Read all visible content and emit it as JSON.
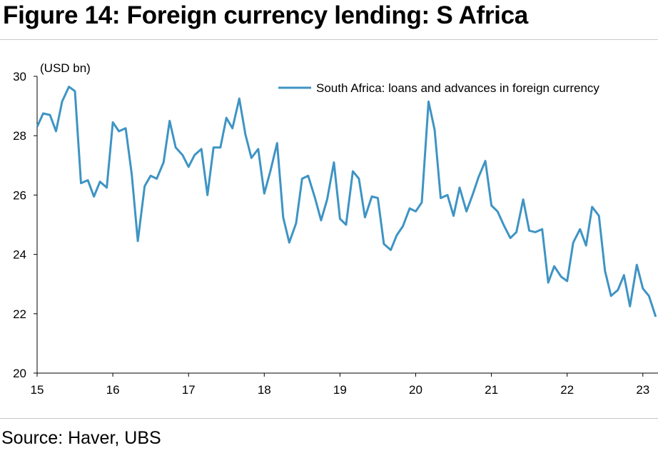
{
  "figure": {
    "title": "Figure 14: Foreign currency lending: S Africa",
    "source": "Source: Haver, UBS"
  },
  "colors": {
    "line": "#3e94c4",
    "axis": "#000000",
    "rule": "#c8c8c8"
  },
  "chart_data": {
    "type": "line",
    "unit_label": "(USD bn)",
    "ylim": [
      20,
      30
    ],
    "yticks": [
      20,
      22,
      24,
      26,
      28,
      30
    ],
    "xlim": [
      15,
      23.2
    ],
    "xticks": [
      15,
      16,
      17,
      18,
      19,
      20,
      21,
      22,
      23
    ],
    "xtick_labels": [
      "15",
      "16",
      "17",
      "18",
      "19",
      "20",
      "21",
      "22",
      "23"
    ],
    "grid": false,
    "legend_position": "top-right",
    "series": [
      {
        "name": "South Africa: loans and advances in foreign currency",
        "x": [
          15.0,
          15.08,
          15.17,
          15.25,
          15.33,
          15.42,
          15.5,
          15.58,
          15.67,
          15.75,
          15.83,
          15.92,
          16.0,
          16.08,
          16.17,
          16.25,
          16.33,
          16.42,
          16.5,
          16.58,
          16.67,
          16.75,
          16.83,
          16.92,
          17.0,
          17.08,
          17.17,
          17.25,
          17.33,
          17.42,
          17.5,
          17.58,
          17.67,
          17.75,
          17.83,
          17.92,
          18.0,
          18.08,
          18.17,
          18.25,
          18.33,
          18.42,
          18.5,
          18.58,
          18.67,
          18.75,
          18.83,
          18.92,
          19.0,
          19.08,
          19.17,
          19.25,
          19.33,
          19.42,
          19.5,
          19.58,
          19.67,
          19.75,
          19.83,
          19.92,
          20.0,
          20.08,
          20.17,
          20.25,
          20.33,
          20.42,
          20.5,
          20.58,
          20.67,
          20.75,
          20.83,
          20.92,
          21.0,
          21.08,
          21.17,
          21.25,
          21.33,
          21.42,
          21.5,
          21.58,
          21.67,
          21.75,
          21.83,
          21.92,
          22.0,
          22.08,
          22.17,
          22.25,
          22.33,
          22.42,
          22.5,
          22.58,
          22.67,
          22.75,
          22.83,
          22.92,
          23.0,
          23.08,
          23.17
        ],
        "values": [
          28.3,
          28.75,
          28.7,
          28.15,
          29.15,
          29.65,
          29.5,
          26.4,
          26.5,
          25.95,
          26.45,
          26.25,
          28.45,
          28.15,
          28.25,
          26.7,
          24.45,
          26.3,
          26.65,
          26.55,
          27.1,
          28.5,
          27.6,
          27.35,
          26.95,
          27.35,
          27.55,
          26.0,
          27.6,
          27.6,
          28.6,
          28.25,
          29.25,
          28.05,
          27.25,
          27.55,
          26.05,
          26.8,
          27.75,
          25.25,
          24.4,
          25.05,
          26.55,
          26.65,
          25.9,
          25.15,
          25.85,
          27.1,
          25.2,
          25.0,
          26.8,
          26.55,
          25.25,
          25.95,
          25.9,
          24.35,
          24.15,
          24.65,
          24.95,
          25.55,
          25.45,
          25.75,
          29.15,
          28.2,
          25.9,
          26.0,
          25.3,
          26.25,
          25.45,
          26.0,
          26.6,
          27.15,
          25.65,
          25.45,
          24.95,
          24.55,
          24.75,
          25.85,
          24.8,
          24.75,
          24.85,
          23.05,
          23.6,
          23.25,
          23.1,
          24.4,
          24.85,
          24.3,
          25.6,
          25.3,
          23.45,
          22.6,
          22.8,
          23.3,
          22.25,
          23.65,
          22.85,
          22.6,
          21.9
        ]
      }
    ]
  }
}
